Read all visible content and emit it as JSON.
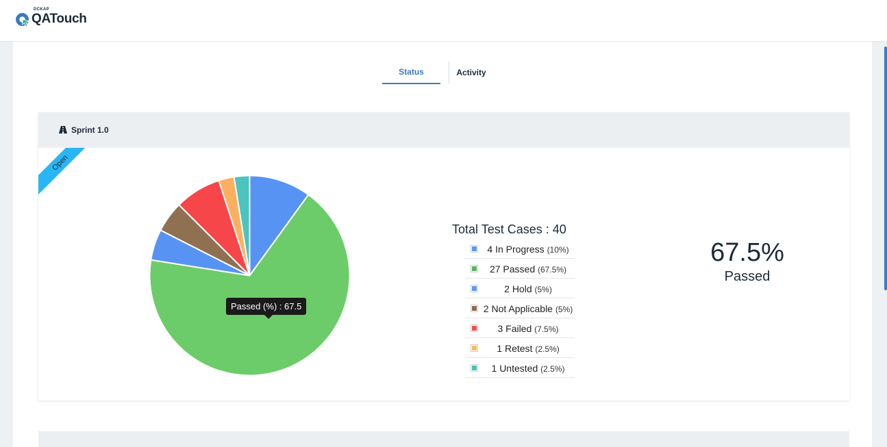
{
  "app": {
    "brand_sub": "DCKAP",
    "brand_name": "QATouch"
  },
  "tabs": [
    {
      "label": "Status",
      "active": true
    },
    {
      "label": "Activity",
      "active": false
    }
  ],
  "sprint": {
    "title": "Sprint 1.0",
    "ribbon": "Open"
  },
  "summary": {
    "total_label": "Total Test Cases : 40",
    "passed_percent": "67.5%",
    "passed_label": "Passed"
  },
  "legend": [
    {
      "count_label": "4 In Progress",
      "pct": "(10%)",
      "color": "#5b97f1"
    },
    {
      "count_label": "27 Passed",
      "pct": "(67.5%)",
      "color": "#56b560"
    },
    {
      "count_label": "2 Hold",
      "pct": "(5%)",
      "color": "#5b97f1"
    },
    {
      "count_label": "2 Not Applicable",
      "pct": "(5%)",
      "color": "#8e6b4e"
    },
    {
      "count_label": "3 Failed",
      "pct": "(7.5%)",
      "color": "#f05152"
    },
    {
      "count_label": "1 Retest",
      "pct": "(2.5%)",
      "color": "#f8b85d"
    },
    {
      "count_label": "1 Untested",
      "pct": "(2.5%)",
      "color": "#48c0b8"
    }
  ],
  "tooltip": "Passed (%) : 67.5",
  "chart_data": {
    "type": "pie",
    "categories": [
      "In Progress",
      "Passed",
      "Hold",
      "Not Applicable",
      "Failed",
      "Retest",
      "Untested"
    ],
    "values": [
      10,
      67.5,
      5,
      5,
      7.5,
      2.5,
      2.5
    ],
    "colors": [
      "#5793f3",
      "#6ccc6a",
      "#5793f3",
      "#8f7152",
      "#f74649",
      "#fbb05f",
      "#4bc4bf"
    ]
  }
}
